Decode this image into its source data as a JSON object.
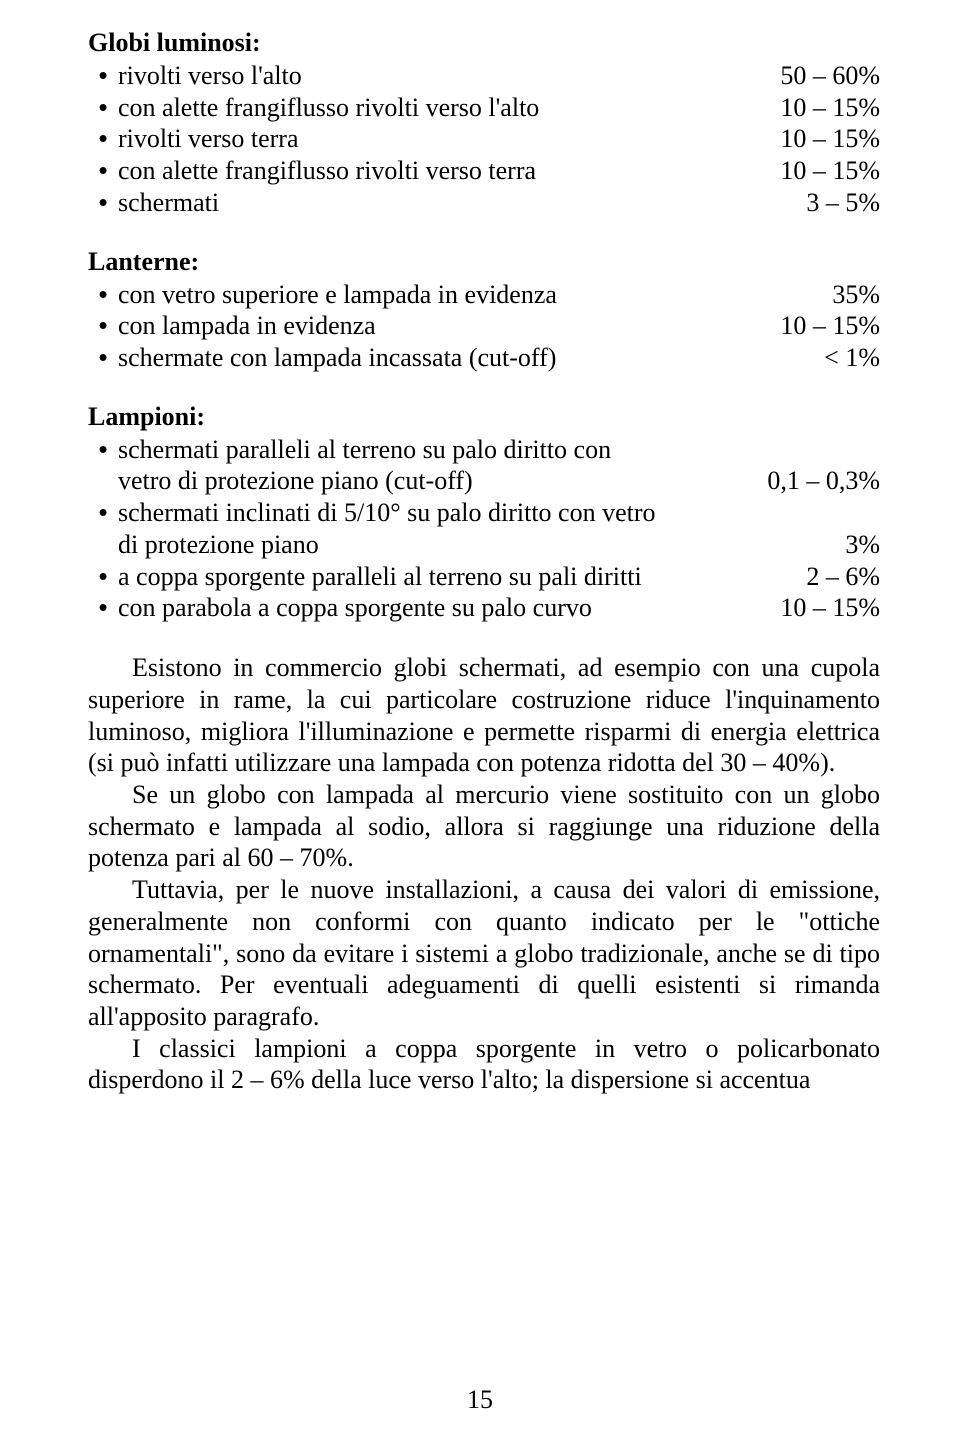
{
  "globi": {
    "title": "Globi luminosi:",
    "items": [
      {
        "label": "rivolti verso l'alto",
        "value": "50 – 60%"
      },
      {
        "label": "con alette frangiflusso rivolti verso l'alto",
        "value": "10 – 15%"
      },
      {
        "label": "rivolti verso terra",
        "value": "10 – 15%"
      },
      {
        "label": "con alette frangiflusso rivolti verso terra",
        "value": "10 – 15%"
      },
      {
        "label": "schermati",
        "value": "3 – 5%"
      }
    ]
  },
  "lanterne": {
    "title": "Lanterne:",
    "items": [
      {
        "label": "con vetro superiore e lampada in evidenza",
        "value": "35%"
      },
      {
        "label": "con lampada in evidenza",
        "value": "10 – 15%"
      },
      {
        "label": "schermate con lampada incassata (cut-off)",
        "value": "< 1%"
      }
    ]
  },
  "lampioni": {
    "title": "Lampioni:",
    "items": [
      {
        "label1": "schermati paralleli al terreno su palo diritto con",
        "label2": "vetro di protezione piano (cut-off)",
        "value": "0,1 – 0,3%"
      },
      {
        "label1": "schermati inclinati di 5/10° su palo diritto con vetro",
        "label2": "di protezione piano",
        "value": "3%"
      },
      {
        "label1": "a coppa sporgente paralleli al terreno su pali diritti",
        "value": "2 – 6%"
      },
      {
        "label1": "con parabola a coppa sporgente su palo curvo",
        "value": "10 – 15%"
      }
    ]
  },
  "paragraphs": [
    "Esistono in commercio globi schermati, ad esempio con una cupola superiore in rame, la cui particolare costruzione riduce l'inquinamento luminoso, migliora l'illuminazione e permette risparmi di energia elettrica (si può infatti utilizzare una lampada con potenza ridotta del 30 – 40%).",
    "Se un globo con lampada al mercurio viene sostituito con un globo schermato e lampada al sodio, allora si raggiunge una riduzione della potenza pari al 60 – 70%.",
    "Tuttavia, per le nuove installazioni, a causa dei valori di emissione, generalmente non conformi con quanto indicato per le \"ottiche ornamentali\", sono da evitare i sistemi a globo tradizionale, anche se di tipo schermato. Per eventuali adeguamenti di quelli esistenti si rimanda all'apposito paragrafo.",
    "I classici lampioni a coppa sporgente in vetro o policarbonato disperdono il 2 – 6% della luce verso l'alto; la dispersione si accentua"
  ],
  "page_number": "15"
}
